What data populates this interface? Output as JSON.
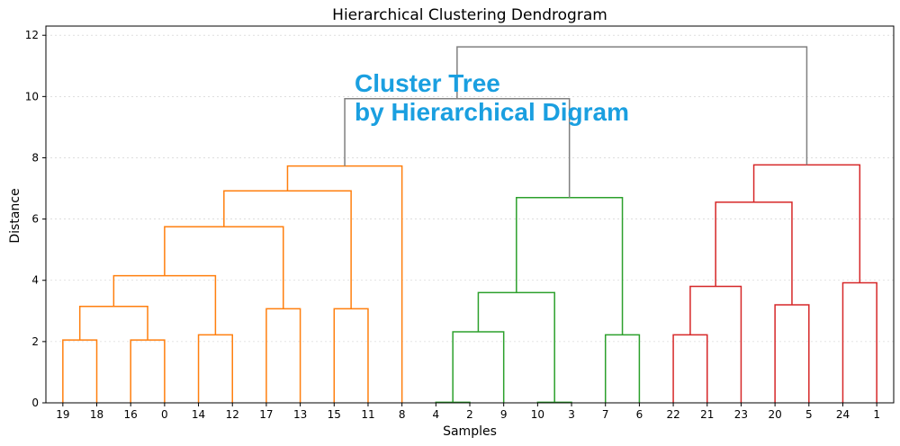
{
  "chart_data": {
    "type": "dendrogram",
    "title": "Hierarchical Clustering Dendrogram",
    "xlabel": "Samples",
    "ylabel": "Distance",
    "ylim": [
      0,
      12.3
    ],
    "yticks": [
      0,
      2,
      4,
      6,
      8,
      10,
      12
    ],
    "grid": "horizontal-dotted",
    "leaf_order": [
      19,
      18,
      16,
      0,
      14,
      12,
      17,
      13,
      15,
      11,
      8,
      4,
      2,
      9,
      10,
      3,
      7,
      6,
      22,
      21,
      23,
      20,
      5,
      24,
      1
    ],
    "links": [
      {
        "a": 19,
        "b": 18,
        "height": 2.05,
        "color": "#ff7f0e"
      },
      {
        "a": 16,
        "b": 0,
        "height": 2.05,
        "color": "#ff7f0e"
      },
      {
        "a": 14,
        "b": 12,
        "height": 2.22,
        "color": "#ff7f0e"
      },
      {
        "a": 17,
        "b": 13,
        "height": 3.07,
        "color": "#ff7f0e"
      },
      {
        "a": 15,
        "b": 11,
        "height": 3.07,
        "color": "#ff7f0e"
      },
      {
        "a": "19+18",
        "b": "16+0",
        "height": 3.15,
        "color": "#ff7f0e"
      },
      {
        "a": "19..0",
        "b": "14+12",
        "height": 4.15,
        "color": "#ff7f0e"
      },
      {
        "a": "19..12",
        "b": "17+13",
        "height": 5.75,
        "color": "#ff7f0e"
      },
      {
        "a": "19..13",
        "b": "15+11",
        "height": 6.92,
        "color": "#ff7f0e"
      },
      {
        "a": "19..11",
        "b": 8,
        "height": 7.73,
        "color": "#ff7f0e"
      },
      {
        "a": 4,
        "b": 2,
        "height": 0.02,
        "color": "#2ca02c"
      },
      {
        "a": 10,
        "b": 3,
        "height": 0.02,
        "color": "#2ca02c"
      },
      {
        "a": "4+2",
        "b": 9,
        "height": 2.32,
        "color": "#2ca02c"
      },
      {
        "a": 7,
        "b": 6,
        "height": 2.22,
        "color": "#2ca02c"
      },
      {
        "a": "4..9",
        "b": "10+3",
        "height": 3.6,
        "color": "#2ca02c"
      },
      {
        "a": "4..3",
        "b": "7+6",
        "height": 6.7,
        "color": "#2ca02c"
      },
      {
        "a": 22,
        "b": 21,
        "height": 2.22,
        "color": "#d62728"
      },
      {
        "a": 20,
        "b": 5,
        "height": 3.2,
        "color": "#d62728"
      },
      {
        "a": "22+21",
        "b": 23,
        "height": 3.8,
        "color": "#d62728"
      },
      {
        "a": 24,
        "b": 1,
        "height": 3.92,
        "color": "#d62728"
      },
      {
        "a": "22..23",
        "b": "20+5",
        "height": 6.55,
        "color": "#d62728"
      },
      {
        "a": "22..5",
        "b": "24+1",
        "height": 7.77,
        "color": "#d62728"
      },
      {
        "a": "orange-cluster",
        "b": "green-cluster",
        "height": 9.93,
        "color": "#808080"
      },
      {
        "a": "orange+green",
        "b": "red-cluster",
        "height": 11.62,
        "color": "#808080"
      }
    ],
    "annotations": [
      "Cluster Tree",
      "by  Hierarchical Digram"
    ]
  }
}
